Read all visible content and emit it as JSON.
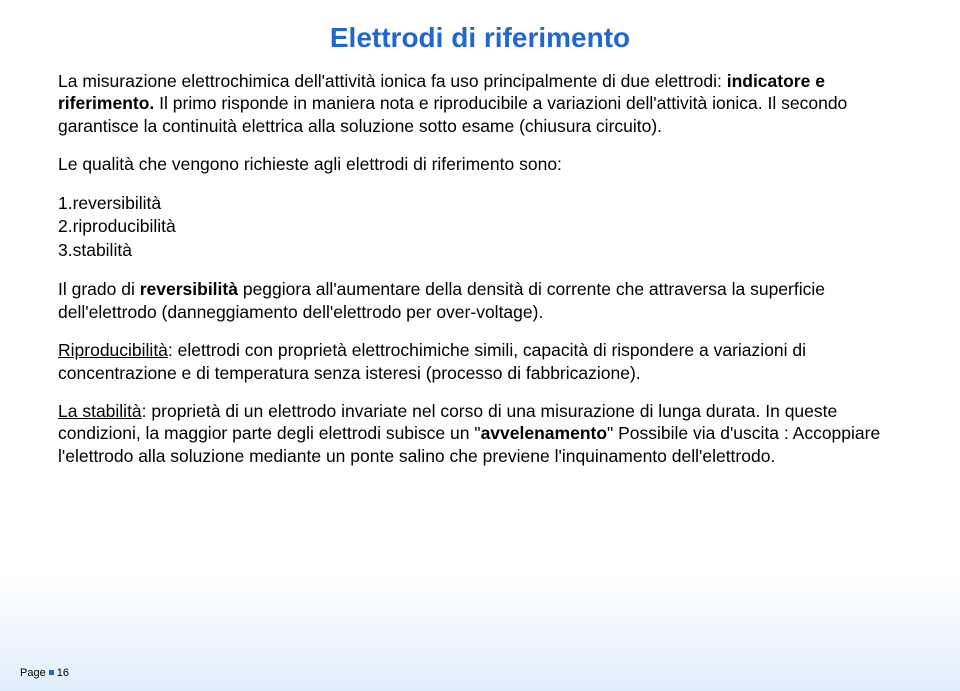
{
  "title": "Elettrodi di riferimento",
  "intro": {
    "p1a": "La misurazione elettrochimica dell'attività ionica fa uso principalmente di due elettrodi: ",
    "p1b": "indicatore e riferimento.",
    "p1c": " Il primo risponde in maniera nota e riproducibile a variazioni dell'attività ionica. Il secondo garantisce la continuità elettrica alla soluzione sotto esame (chiusura circuito)."
  },
  "listlead": "Le qualità che vengono richieste agli elettrodi di riferimento sono:",
  "items": {
    "i1": "1.reversibilità",
    "i2": "2.riproducibilità",
    "i3": "3.stabilità"
  },
  "body": {
    "p3a": "Il grado di ",
    "p3b": "reversibilità",
    "p3c": " peggiora all'aumentare della densità di corrente che attraversa la superficie dell'elettrodo (danneggiamento dell'elettrodo per over-voltage).",
    "p4a": "Riproducibilità",
    "p4b": ": elettrodi con proprietà elettrochimiche simili, capacità di rispondere a variazioni di concentrazione e di temperatura senza isteresi (processo di fabbricazione).",
    "p5a": "La stabilità",
    "p5b": ": proprietà di un elettrodo invariate nel corso di una misurazione di lunga durata.  In queste condizioni, la maggior parte degli elettrodi subisce un \"",
    "p5c": "avvelenamento",
    "p5d": "\" Possibile via d'uscita : Accoppiare l'elettrodo alla soluzione mediante un ponte salino che previene l'inquinamento dell'elettrodo."
  },
  "footer": {
    "page_label": "Page",
    "page_num": "16"
  }
}
